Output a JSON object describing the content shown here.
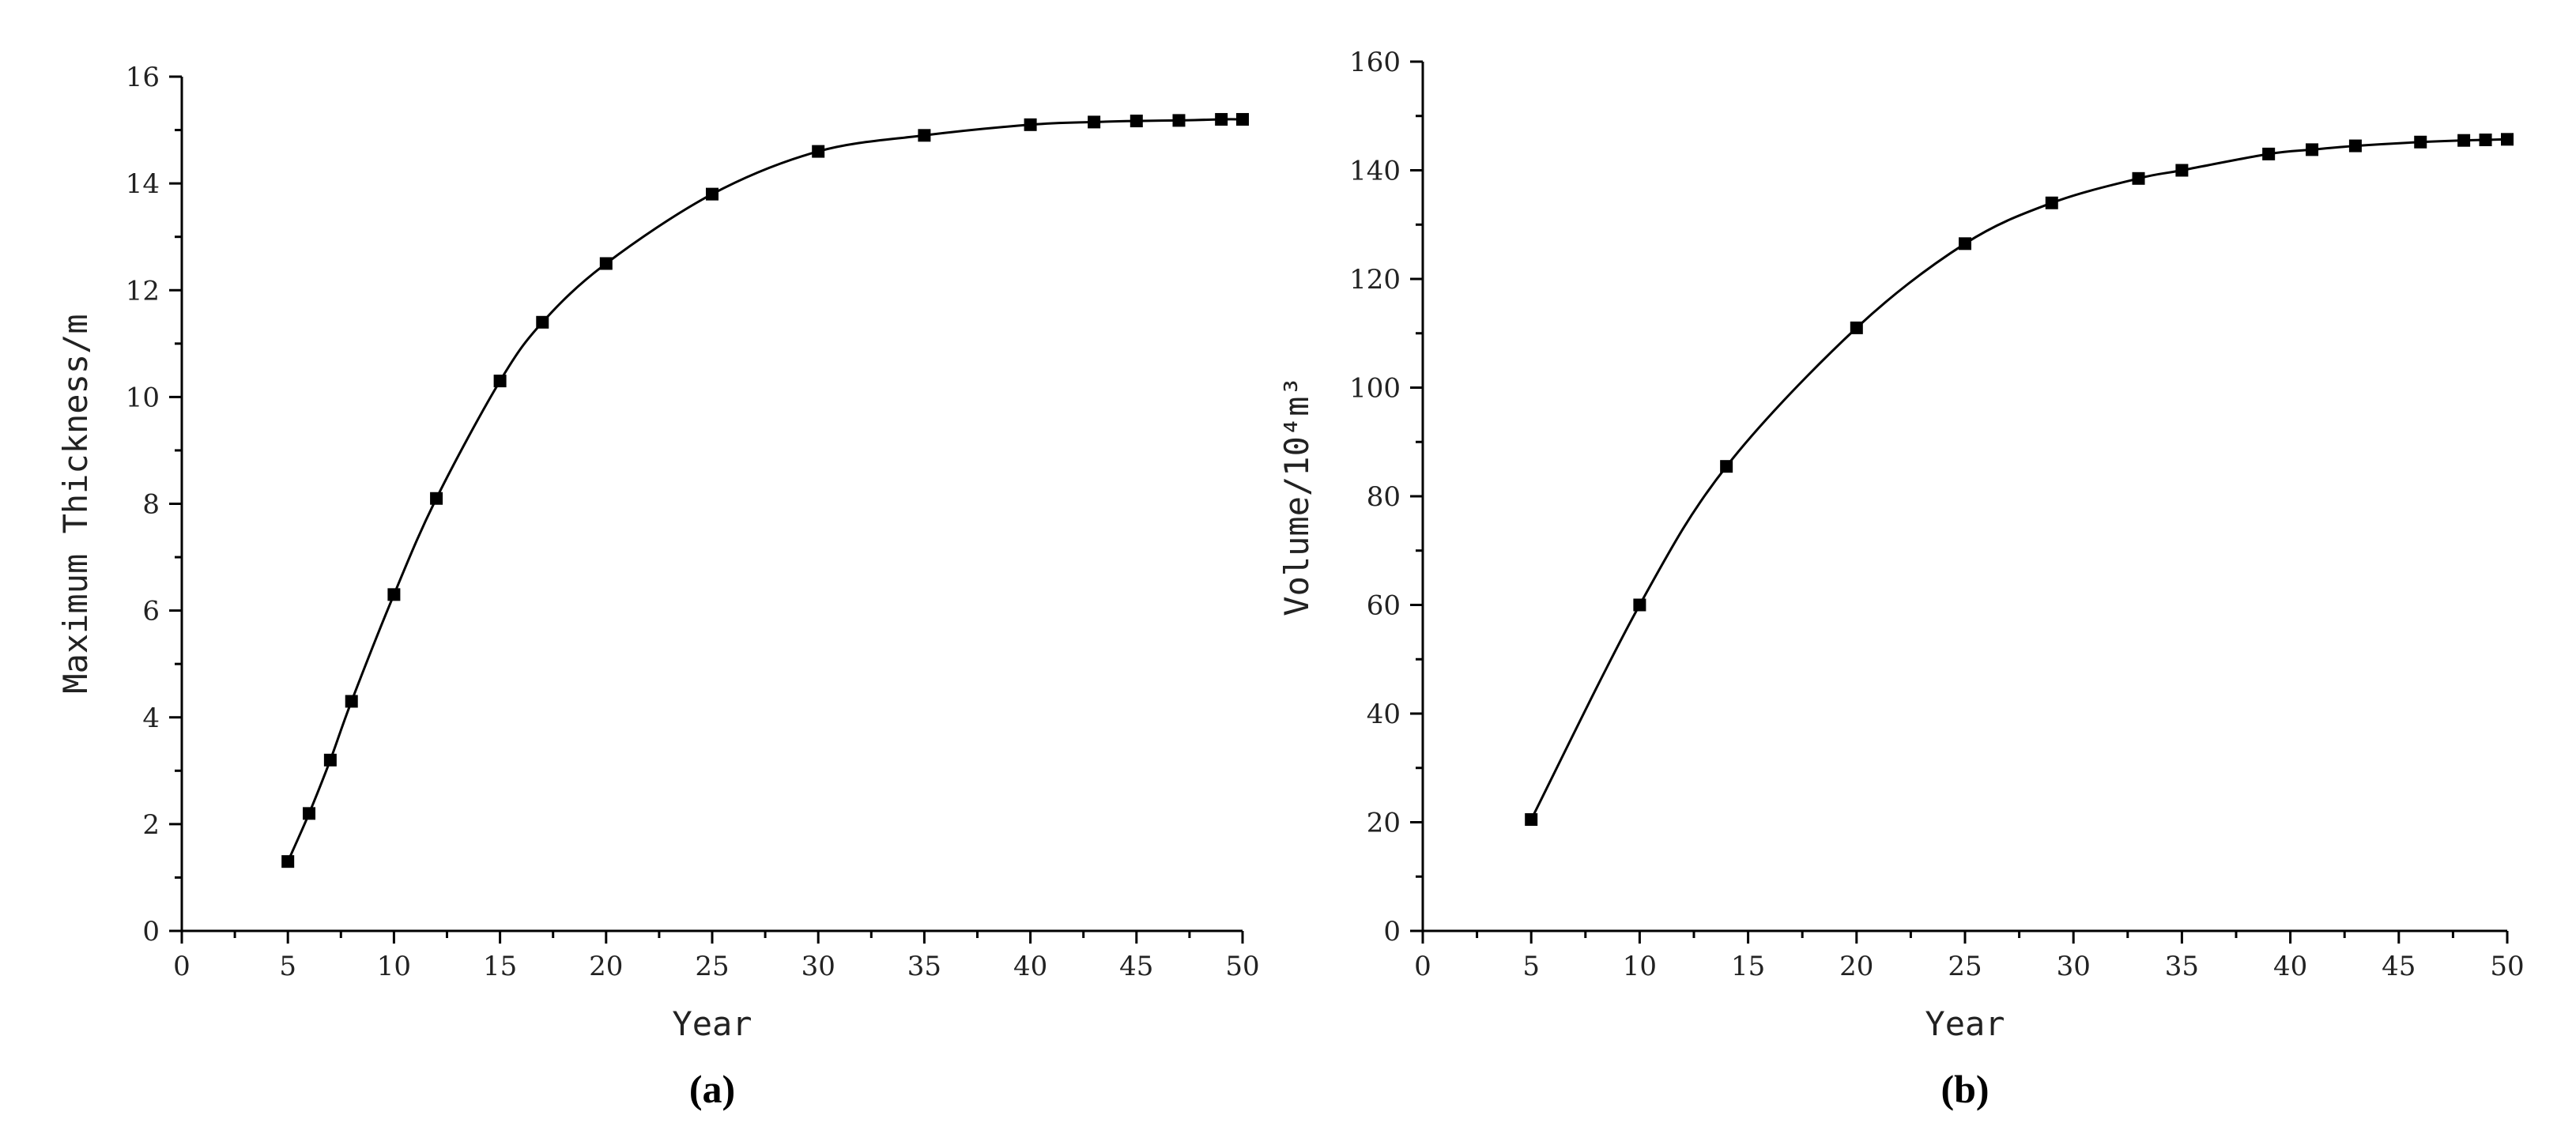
{
  "chart_data": [
    {
      "type": "scatter",
      "panel_label": "(a)",
      "xlabel": "Year",
      "ylabel": "Maximum Thickness/m",
      "xlim": [
        0,
        50
      ],
      "ylim": [
        0,
        16
      ],
      "xticks": [
        0,
        5,
        10,
        15,
        20,
        25,
        30,
        35,
        40,
        45,
        50
      ],
      "yticks": [
        0,
        2,
        4,
        6,
        8,
        10,
        12,
        14,
        16
      ],
      "grid": false,
      "legend": "none",
      "marker": "square",
      "fit_line": true,
      "series": [
        {
          "x": [
            5,
            6,
            7,
            8,
            10,
            12,
            15,
            17,
            20,
            25,
            30,
            35,
            40,
            43,
            45,
            47,
            49,
            50
          ],
          "y": [
            1.3,
            2.2,
            3.2,
            4.3,
            6.3,
            8.1,
            10.3,
            11.4,
            12.5,
            13.8,
            14.6,
            14.9,
            15.1,
            15.15,
            15.17,
            15.18,
            15.2,
            15.2
          ]
        }
      ]
    },
    {
      "type": "scatter",
      "panel_label": "(b)",
      "xlabel": "Year",
      "ylabel": "Volume/10⁴m³",
      "xlim": [
        0,
        50
      ],
      "ylim": [
        0,
        160
      ],
      "xticks": [
        0,
        5,
        10,
        15,
        20,
        25,
        30,
        35,
        40,
        45,
        50
      ],
      "yticks": [
        0,
        20,
        40,
        60,
        80,
        100,
        120,
        140,
        160
      ],
      "grid": false,
      "legend": "none",
      "marker": "square",
      "fit_line": true,
      "series": [
        {
          "x": [
            5,
            10,
            14,
            20,
            25,
            29,
            33,
            35,
            39,
            41,
            43,
            46,
            48,
            49,
            50
          ],
          "y": [
            20.5,
            60,
            85.5,
            111,
            126.5,
            134,
            138.5,
            140,
            143,
            143.8,
            144.5,
            145.2,
            145.5,
            145.6,
            145.7
          ]
        }
      ]
    }
  ]
}
